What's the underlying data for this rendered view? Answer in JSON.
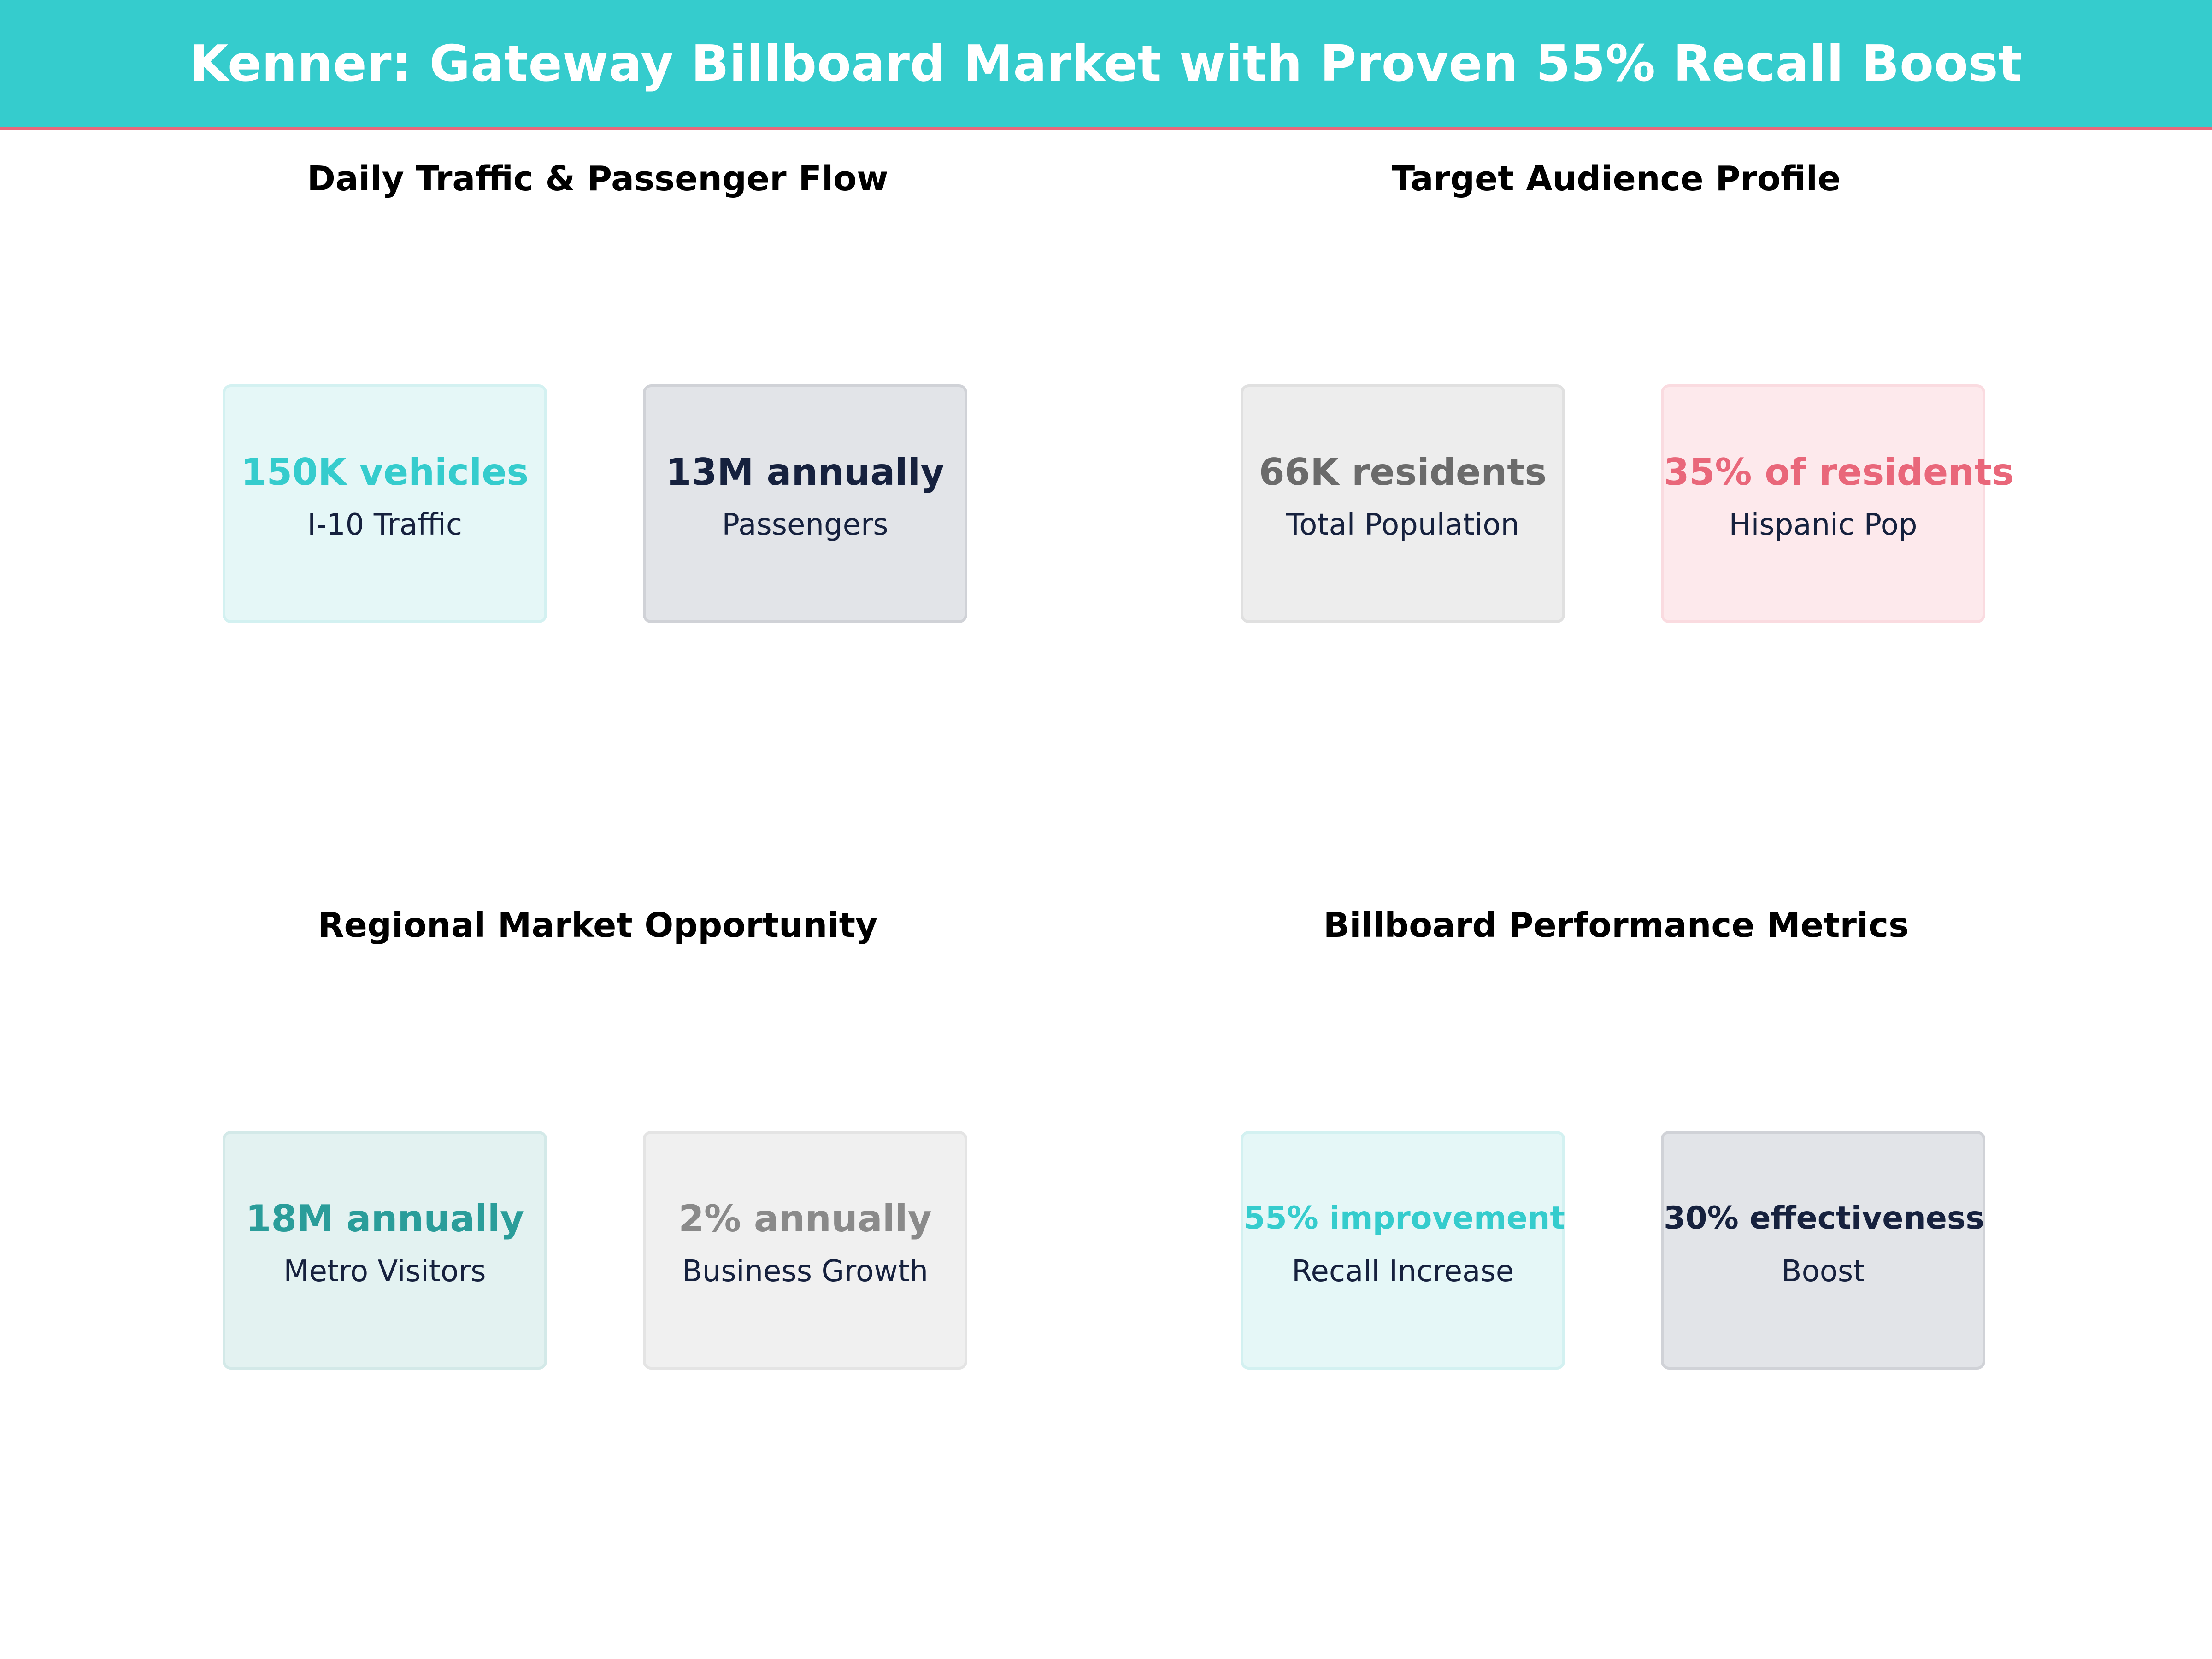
{
  "header": {
    "title": "Kenner: Gateway Billboard Market with Proven 55% Recall Boost",
    "background_color": "#35cccd",
    "accent_line_color": "#e9677a"
  },
  "chart_data": [
    {
      "type": "table",
      "title": "Daily Traffic & Passenger Flow",
      "cards": [
        {
          "value": "150K vehicles",
          "label": "I-10 Traffic",
          "color": "#35cccd"
        },
        {
          "value": "13M annually",
          "label": "Passengers",
          "color": "#16213e"
        }
      ]
    },
    {
      "type": "table",
      "title": "Target Audience Profile",
      "cards": [
        {
          "value": "66K residents",
          "label": "Total Population",
          "color": "#6b6b6b"
        },
        {
          "value": "35% of residents",
          "label": "Hispanic Pop",
          "color": "#e9677a"
        }
      ]
    },
    {
      "type": "table",
      "title": "Regional Market Opportunity",
      "cards": [
        {
          "value": "18M annually",
          "label": "Metro Visitors",
          "color": "#2a9d9a"
        },
        {
          "value": "2% annually",
          "label": "Business Growth",
          "color": "#8a8a8a"
        }
      ]
    },
    {
      "type": "table",
      "title": "Billboard Performance Metrics",
      "cards": [
        {
          "value": "55% improvement",
          "label": "Recall Increase",
          "color": "#35cccd"
        },
        {
          "value": "30% effectiveness",
          "label": "Boost",
          "color": "#16213e"
        }
      ]
    }
  ]
}
